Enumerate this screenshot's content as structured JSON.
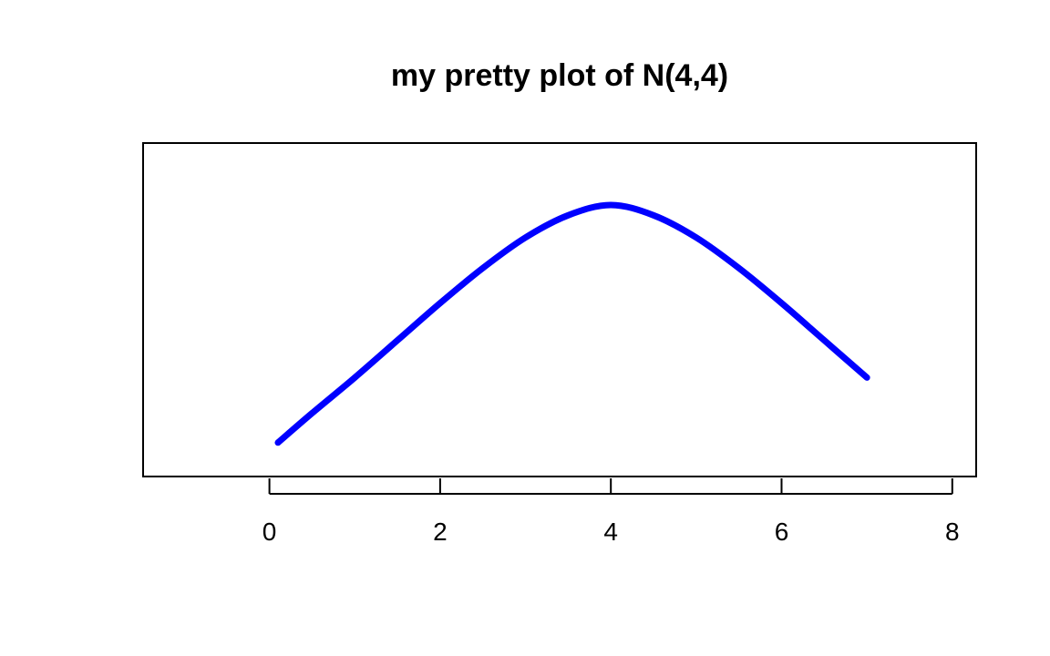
{
  "chart_data": {
    "type": "line",
    "title": "my pretty plot of N(4,4)",
    "xlabel": "",
    "ylabel": "",
    "xlim": [
      -1.48,
      8.28
    ],
    "ylim": [
      0.085,
      0.205
    ],
    "x_ticks": [
      0,
      2,
      4,
      6,
      8
    ],
    "x_tick_labels": [
      "0",
      "2",
      "4",
      "6",
      "8"
    ],
    "y_axis_shown": false,
    "grid": false,
    "legend": "none",
    "series": [
      {
        "color": "#0000FF",
        "line_style": "solid",
        "line_width": "thick",
        "x": [
          0.1,
          0.5,
          1.0,
          1.5,
          2.0,
          2.5,
          3.0,
          3.5,
          4.0,
          4.5,
          5.0,
          5.5,
          6.0,
          6.5,
          7.0
        ],
        "y": [
          0.0972,
          0.1078,
          0.1206,
          0.134,
          0.1474,
          0.16,
          0.171,
          0.179,
          0.1827,
          0.179,
          0.171,
          0.16,
          0.1474,
          0.134,
          0.1206
        ]
      }
    ]
  }
}
